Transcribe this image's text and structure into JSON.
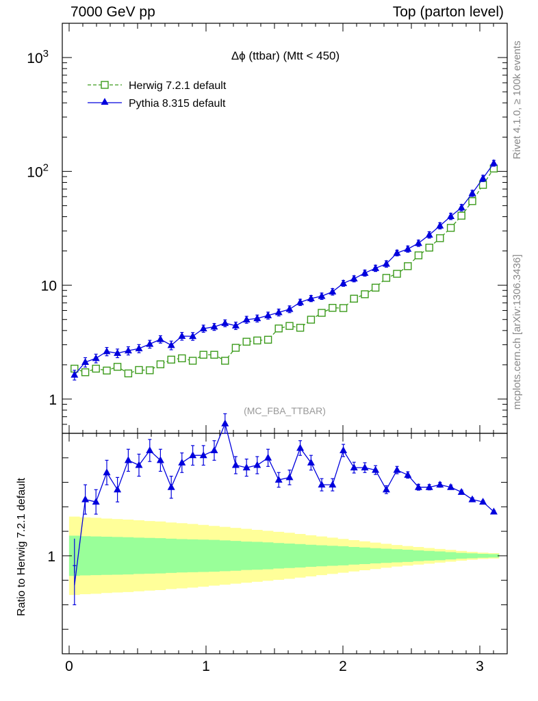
{
  "header": {
    "left": "7000 GeV pp",
    "right": "Top (parton level)"
  },
  "side_labels": {
    "rivet": "Rivet 4.1.0, ≥ 100k events",
    "mcplots": "mcplots.cern.ch [arXiv:1306.3436]"
  },
  "colors": {
    "herwig": "#3a9a1a",
    "pythia": "#0000dd",
    "band_inner": "#99ff99",
    "band_outer": "#ffff99"
  },
  "chart_data": [
    {
      "type": "line",
      "panel": "main",
      "title": "Δϕ (ttbar) (Mtt < 450)",
      "watermark": "(MC_FBA_TTBAR)",
      "xlabel": "",
      "ylabel": "",
      "yscale": "log",
      "xlim": [
        -0.05,
        3.2
      ],
      "ylim": [
        0.5,
        2000
      ],
      "x_ticks": [
        0,
        1,
        2,
        3
      ],
      "y_ticks": [
        {
          "value": 1,
          "label": "1"
        },
        {
          "value": 10,
          "label": "10"
        },
        {
          "value": 100,
          "label": "10",
          "sup": "2"
        },
        {
          "value": 1000,
          "label": "10",
          "sup": "3"
        }
      ],
      "legend": {
        "placement": "top-left"
      },
      "x": [
        0.039,
        0.118,
        0.196,
        0.275,
        0.353,
        0.432,
        0.51,
        0.589,
        0.667,
        0.746,
        0.824,
        0.903,
        0.981,
        1.06,
        1.139,
        1.217,
        1.296,
        1.374,
        1.453,
        1.531,
        1.61,
        1.688,
        1.767,
        1.845,
        1.924,
        2.003,
        2.081,
        2.16,
        2.238,
        2.317,
        2.395,
        2.474,
        2.552,
        2.631,
        2.709,
        2.788,
        2.866,
        2.945,
        3.023,
        3.102
      ],
      "series": [
        {
          "name": "Herwig 7.2.1 default",
          "style": "dashed-open-square",
          "values": [
            1.85,
            1.72,
            1.85,
            1.78,
            1.92,
            1.68,
            1.8,
            1.79,
            2.02,
            2.22,
            2.28,
            2.17,
            2.45,
            2.45,
            2.17,
            2.82,
            3.19,
            3.27,
            3.32,
            4.17,
            4.39,
            4.23,
            4.98,
            5.72,
            6.33,
            6.3,
            7.62,
            8.33,
            9.52,
            11.6,
            12.6,
            14.7,
            18.3,
            21.4,
            25.9,
            31.9,
            40.8,
            54.8,
            76.1,
            106
          ]
        },
        {
          "name": "Pythia 8.315 default",
          "style": "solid-filled-triangle",
          "errors": [
            0.16,
            0.2,
            0.2,
            0.22,
            0.22,
            0.22,
            0.23,
            0.24,
            0.25,
            0.26,
            0.28,
            0.28,
            0.3,
            0.3,
            0.32,
            0.33,
            0.35,
            0.36,
            0.38,
            0.4,
            0.42,
            0.45,
            0.48,
            0.52,
            0.58,
            0.62,
            0.7,
            0.78,
            0.9,
            1.0,
            1.1,
            1.3,
            1.5,
            1.8,
            2.1,
            2.6,
            3.2,
            4.0,
            5.5,
            7.0
          ],
          "values": [
            1.63,
            2.11,
            2.28,
            2.62,
            2.53,
            2.66,
            2.78,
            3.04,
            3.35,
            2.97,
            3.57,
            3.56,
            4.16,
            4.31,
            4.64,
            4.41,
            4.98,
            5.11,
            5.42,
            5.77,
            6.16,
            7.08,
            7.65,
            8.02,
            8.77,
            10.4,
            11.4,
            12.8,
            14.1,
            15.4,
            19.2,
            20.8,
            23.4,
            27.7,
            33.3,
            40.3,
            48.1,
            64.2,
            86.9,
            118
          ]
        }
      ]
    },
    {
      "type": "line",
      "panel": "ratio",
      "title": "",
      "xlabel": "",
      "ylabel": "Ratio to Herwig 7.2.1 default",
      "xlim": [
        -0.05,
        3.2
      ],
      "ylim": [
        0.6,
        1.5
      ],
      "x_ticks": [
        0,
        1,
        2,
        3
      ],
      "y_ticks": [
        {
          "value": 1,
          "label": "1"
        }
      ],
      "band_inner_halfwidth": [
        0.082,
        0.08,
        0.079,
        0.078,
        0.077,
        0.076,
        0.074,
        0.073,
        0.072,
        0.07,
        0.068,
        0.067,
        0.066,
        0.065,
        0.063,
        0.061,
        0.058,
        0.057,
        0.055,
        0.052,
        0.05,
        0.048,
        0.045,
        0.043,
        0.041,
        0.039,
        0.036,
        0.034,
        0.031,
        0.029,
        0.027,
        0.025,
        0.022,
        0.02,
        0.018,
        0.015,
        0.012,
        0.01,
        0.008,
        0.007
      ],
      "band_outer_halfwidth": [
        0.16,
        0.157,
        0.155,
        0.152,
        0.15,
        0.148,
        0.145,
        0.142,
        0.14,
        0.136,
        0.133,
        0.13,
        0.126,
        0.122,
        0.118,
        0.114,
        0.11,
        0.106,
        0.102,
        0.098,
        0.094,
        0.089,
        0.084,
        0.079,
        0.074,
        0.069,
        0.064,
        0.059,
        0.054,
        0.049,
        0.044,
        0.04,
        0.036,
        0.032,
        0.028,
        0.024,
        0.02,
        0.016,
        0.013,
        0.011
      ],
      "herwig_ratio_errors": [
        0.07,
        0.05
      ],
      "x": [
        0.039,
        0.118,
        0.196,
        0.275,
        0.353,
        0.432,
        0.51,
        0.589,
        0.667,
        0.746,
        0.824,
        0.903,
        0.981,
        1.06,
        1.139,
        1.217,
        1.296,
        1.374,
        1.453,
        1.531,
        1.61,
        1.688,
        1.767,
        1.845,
        1.924,
        2.003,
        2.081,
        2.16,
        2.238,
        2.317,
        2.395,
        2.474,
        2.552,
        2.631,
        2.709,
        2.788,
        2.866,
        2.945,
        3.023,
        3.102
      ],
      "series": [
        {
          "name": "Pythia 8.315 default / Herwig 7.2.1 default",
          "values": [
            0.88,
            1.23,
            1.22,
            1.34,
            1.27,
            1.39,
            1.37,
            1.43,
            1.39,
            1.28,
            1.38,
            1.41,
            1.41,
            1.43,
            1.54,
            1.37,
            1.36,
            1.37,
            1.4,
            1.31,
            1.32,
            1.44,
            1.38,
            1.29,
            1.29,
            1.43,
            1.36,
            1.36,
            1.35,
            1.27,
            1.35,
            1.33,
            1.28,
            1.28,
            1.29,
            1.28,
            1.26,
            1.23,
            1.22,
            1.18
          ],
          "errors": [
            0.08,
            0.06,
            0.05,
            0.05,
            0.05,
            0.045,
            0.045,
            0.045,
            0.045,
            0.045,
            0.04,
            0.04,
            0.04,
            0.04,
            0.04,
            0.035,
            0.035,
            0.035,
            0.035,
            0.03,
            0.03,
            0.03,
            0.03,
            0.025,
            0.025,
            0.025,
            0.022,
            0.02,
            0.018,
            0.016,
            0.015,
            0.013,
            0.012,
            0.011,
            0.01,
            0.009,
            0.008,
            0.007,
            0.006,
            0.006
          ]
        }
      ]
    }
  ]
}
